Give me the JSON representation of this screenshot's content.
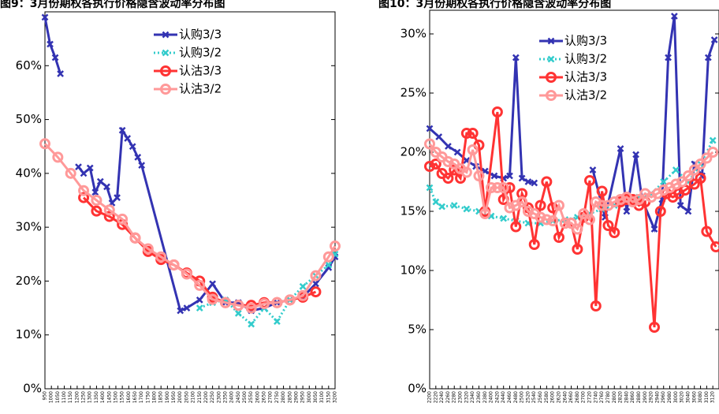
{
  "chart_data": [
    {
      "type": "line",
      "title": "图9：3月份期权各执行价格隐含波动率分布图",
      "xlim": [
        950,
        3200
      ],
      "xticks": [
        950,
        1000,
        1050,
        1100,
        1150,
        1200,
        1250,
        1300,
        1350,
        1400,
        1450,
        1500,
        1550,
        1600,
        1650,
        1700,
        1750,
        1800,
        1850,
        1900,
        1950,
        2000,
        2050,
        2100,
        2150,
        2200,
        2250,
        2300,
        2350,
        2400,
        2450,
        2500,
        2550,
        2600,
        2650,
        2700,
        2750,
        2800,
        2850,
        2900,
        2950,
        3000,
        3050,
        3100,
        3150,
        3200
      ],
      "ylim": [
        0,
        70
      ],
      "yticks": [
        {
          "value": 0,
          "label": "0%"
        },
        {
          "value": 10,
          "label": "10%"
        },
        {
          "value": 20,
          "label": "20%"
        },
        {
          "value": 30,
          "label": "30%"
        },
        {
          "value": 40,
          "label": "40%"
        },
        {
          "value": 50,
          "label": "50%"
        },
        {
          "value": 60,
          "label": "60%"
        }
      ],
      "series": [
        {
          "name": "认购3/3",
          "color": "#3333b2",
          "marker": "x",
          "linestyle": "solid",
          "x": [
            950,
            990,
            1030,
            1070,
            1120,
            1210,
            1250,
            1300,
            1340,
            1380,
            1430,
            1470,
            1510,
            1550,
            1590,
            1630,
            1670,
            1700,
            2000,
            2050,
            2150,
            2250,
            2350,
            2450,
            2550,
            2650,
            2750,
            2850,
            2950,
            3050,
            3150,
            3200
          ],
          "values": [
            69,
            64,
            61.5,
            58.5,
            null,
            41.2,
            40,
            41,
            36.5,
            38.5,
            37.5,
            34.5,
            35.5,
            48,
            46.5,
            45,
            43,
            41.5,
            14.5,
            15,
            16.5,
            19.5,
            16,
            16,
            14.5,
            15,
            16,
            16.5,
            17,
            19.5,
            22.5,
            24.5
          ]
        },
        {
          "name": "认购3/2",
          "color": "#33cccc",
          "marker": "x",
          "linestyle": "dotted",
          "x": [
            2150,
            2250,
            2350,
            2450,
            2550,
            2650,
            2750,
            2850,
            2950,
            3050,
            3150,
            3200
          ],
          "values": [
            15,
            16,
            16.5,
            14,
            12,
            15,
            12.5,
            16.5,
            19,
            21,
            23,
            25
          ]
        },
        {
          "name": "认沽3/3",
          "color": "#ff3333",
          "marker": "o",
          "linestyle": "solid",
          "x": [
            1250,
            1350,
            1450,
            1550,
            1650,
            1750,
            1850,
            1950,
            2050,
            2150,
            2250,
            2350,
            2450,
            2550,
            2650,
            2750,
            2850,
            2950,
            3050
          ],
          "values": [
            35.5,
            33,
            32,
            30.5,
            28,
            25.5,
            24,
            23,
            21.5,
            20,
            17,
            16,
            15.5,
            15.5,
            16,
            16,
            16.5,
            17,
            18
          ]
        },
        {
          "name": "认沽3/2",
          "color": "#ff9999",
          "marker": "o",
          "linestyle": "solid",
          "x": [
            950,
            1050,
            1150,
            1250,
            1350,
            1450,
            1550,
            1650,
            1750,
            1850,
            1950,
            2050,
            2150,
            2250,
            2350,
            2450,
            2550,
            2650,
            2750,
            2850,
            2950,
            3050,
            3150,
            3200
          ],
          "values": [
            45.5,
            43,
            40,
            36.8,
            35,
            33.2,
            31.5,
            28,
            26,
            24.5,
            23,
            21.3,
            19.2,
            16.6,
            16,
            15.5,
            15,
            15.8,
            16,
            16.5,
            17.3,
            21,
            24.5,
            26.5
          ]
        }
      ]
    },
    {
      "type": "line",
      "title": "图10：3月份期权各执行价格隐含波动率分布图",
      "xlim": [
        2200,
        3140
      ],
      "xticks": [
        2200,
        2220,
        2240,
        2260,
        2280,
        2300,
        2320,
        2340,
        2360,
        2380,
        2400,
        2420,
        2440,
        2460,
        2480,
        2500,
        2520,
        2540,
        2560,
        2580,
        2600,
        2620,
        2640,
        2660,
        2680,
        2700,
        2720,
        2740,
        2760,
        2780,
        2800,
        2820,
        2840,
        2860,
        2880,
        2900,
        2920,
        2940,
        2960,
        2980,
        3000,
        3020,
        3040,
        3060,
        3080,
        3100,
        3120
      ],
      "ylim": [
        0,
        32
      ],
      "yticks": [
        {
          "value": 0,
          "label": "0%"
        },
        {
          "value": 5,
          "label": "5%"
        },
        {
          "value": 10,
          "label": "10%"
        },
        {
          "value": 15,
          "label": "15%"
        },
        {
          "value": 20,
          "label": "20%"
        },
        {
          "value": 25,
          "label": "25%"
        },
        {
          "value": 30,
          "label": "30%"
        }
      ],
      "series": [
        {
          "name": "认购3/3",
          "color": "#3333b2",
          "marker": "x",
          "linestyle": "solid",
          "x": [
            2200,
            2230,
            2260,
            2290,
            2320,
            2350,
            2380,
            2410,
            2440,
            2460,
            2480,
            2500,
            2520,
            2540,
            2600,
            2730,
            2770,
            2820,
            2840,
            2870,
            2890,
            2930,
            2955,
            2975,
            2995,
            3015,
            3040,
            3060,
            3085,
            3105,
            3125
          ],
          "values": [
            22,
            21.3,
            20.5,
            20,
            19.3,
            18.8,
            18.4,
            18,
            17.8,
            18,
            28,
            17.8,
            17.5,
            17.4,
            null,
            18.5,
            14.5,
            20.3,
            15,
            19.8,
            16,
            13.5,
            16,
            28,
            31.5,
            15.5,
            15,
            19,
            18,
            28,
            29.5
          ]
        },
        {
          "name": "认购3/2",
          "color": "#33cccc",
          "marker": "x",
          "linestyle": "dotted",
          "x": [
            2200,
            2220,
            2240,
            2280,
            2320,
            2360,
            2400,
            2440,
            2480,
            2520,
            2560,
            2600,
            2640,
            2680,
            2720,
            2760,
            2800,
            2840,
            2880,
            2920,
            2960,
            3000,
            3040,
            3080,
            3120
          ],
          "values": [
            17,
            15.8,
            15.4,
            15.5,
            15.2,
            15,
            14.6,
            14.4,
            14.2,
            14,
            14,
            14.2,
            14.3,
            14.5,
            14.8,
            15.2,
            15.5,
            15.8,
            16.2,
            16.5,
            17.5,
            18.5,
            17.5,
            19,
            21
          ]
        },
        {
          "name": "认沽3/3",
          "color": "#ff3333",
          "marker": "o",
          "linestyle": "solid",
          "x": [
            2200,
            2220,
            2240,
            2260,
            2280,
            2300,
            2320,
            2340,
            2360,
            2380,
            2420,
            2440,
            2460,
            2480,
            2500,
            2520,
            2540,
            2560,
            2580,
            2600,
            2620,
            2640,
            2660,
            2680,
            2700,
            2720,
            2740,
            2760,
            2780,
            2800,
            2820,
            2840,
            2860,
            2880,
            2900,
            2930,
            2950,
            2970,
            2990,
            3010,
            3030,
            3060,
            3080,
            3100,
            3130
          ],
          "values": [
            18.8,
            19,
            18.2,
            17.8,
            18.5,
            17.8,
            21.6,
            21.6,
            20.6,
            15,
            23.4,
            16,
            17,
            13.7,
            16.5,
            15.3,
            12.2,
            15.5,
            17.5,
            15.3,
            12.8,
            14,
            14,
            11.8,
            14.5,
            17.6,
            7,
            16.7,
            13.8,
            13.2,
            15.8,
            16,
            16,
            15.5,
            15.8,
            5.2,
            15,
            16.5,
            16.2,
            16.5,
            16.8,
            17.3,
            17.8,
            13.3,
            12
          ]
        },
        {
          "name": "认沽3/2",
          "color": "#ff9999",
          "marker": "o",
          "linestyle": "solid",
          "x": [
            2200,
            2220,
            2240,
            2260,
            2280,
            2300,
            2320,
            2340,
            2360,
            2380,
            2400,
            2420,
            2440,
            2460,
            2480,
            2500,
            2520,
            2540,
            2560,
            2580,
            2600,
            2620,
            2640,
            2660,
            2680,
            2700,
            2720,
            2740,
            2760,
            2780,
            2800,
            2820,
            2840,
            2860,
            2880,
            2900,
            2920,
            2940,
            2960,
            2980,
            3000,
            3020,
            3040,
            3060,
            3080,
            3100,
            3120
          ],
          "values": [
            20.7,
            20,
            19.6,
            19.2,
            19,
            18.6,
            18.3,
            20.2,
            18,
            14.8,
            17,
            17,
            17,
            15.3,
            15.5,
            15.8,
            15,
            14.8,
            14.5,
            14.3,
            14.2,
            15.5,
            14,
            14,
            13.5,
            14.8,
            14.3,
            15.8,
            15.5,
            15.5,
            15.8,
            16,
            16.2,
            15.8,
            16,
            16.5,
            16.2,
            16.5,
            16.8,
            17,
            17.3,
            17.5,
            18,
            18.5,
            19,
            19.5,
            20
          ]
        }
      ]
    }
  ]
}
